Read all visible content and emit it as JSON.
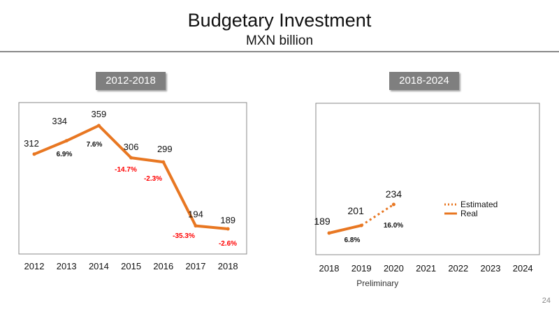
{
  "header": {
    "title": "Budgetary Investment",
    "subtitle": "MXN billion"
  },
  "page_number": "24",
  "colors": {
    "line": "#E87722",
    "negative": "#ff0000",
    "text": "#111111",
    "frame": "#888888"
  },
  "chart_data": [
    {
      "type": "line",
      "title": "2012-2018",
      "categories": [
        "2012",
        "2013",
        "2014",
        "2015",
        "2016",
        "2017",
        "2018"
      ],
      "series": [
        {
          "values": [
            312,
            334,
            359,
            306,
            299,
            194,
            189
          ],
          "style": "solid"
        }
      ],
      "value_labels": [
        "312",
        "334",
        "359",
        "306",
        "299",
        "194",
        "189"
      ],
      "growth_labels": [
        {
          "text": "6.9%",
          "negative": false
        },
        {
          "text": "7.6%",
          "negative": false
        },
        {
          "text": "-14.7%",
          "negative": true
        },
        {
          "text": "-2.3%",
          "negative": true
        },
        {
          "text": "-35.3%",
          "negative": true
        },
        {
          "text": "-2.6%",
          "negative": true
        }
      ],
      "ylim": [
        170,
        370
      ]
    },
    {
      "type": "line",
      "title": "2018-2024",
      "categories": [
        "2018",
        "2019",
        "2020",
        "2021",
        "2022",
        "2023",
        "2024"
      ],
      "xlabel_note": "Preliminary",
      "series": [
        {
          "name": "Real",
          "values": [
            189,
            201,
            null,
            null,
            null,
            null,
            null
          ],
          "style": "solid"
        },
        {
          "name": "Estimated",
          "values": [
            null,
            201,
            234,
            null,
            null,
            null,
            null
          ],
          "style": "dotted"
        }
      ],
      "value_labels": [
        "189",
        "201",
        "234"
      ],
      "growth_labels": [
        {
          "text": "6.8%",
          "negative": false
        },
        {
          "text": "16.0%",
          "negative": false
        }
      ],
      "legend": {
        "position": "right",
        "items": [
          "Estimated",
          "Real"
        ]
      },
      "ylim": [
        150,
        310
      ]
    }
  ]
}
